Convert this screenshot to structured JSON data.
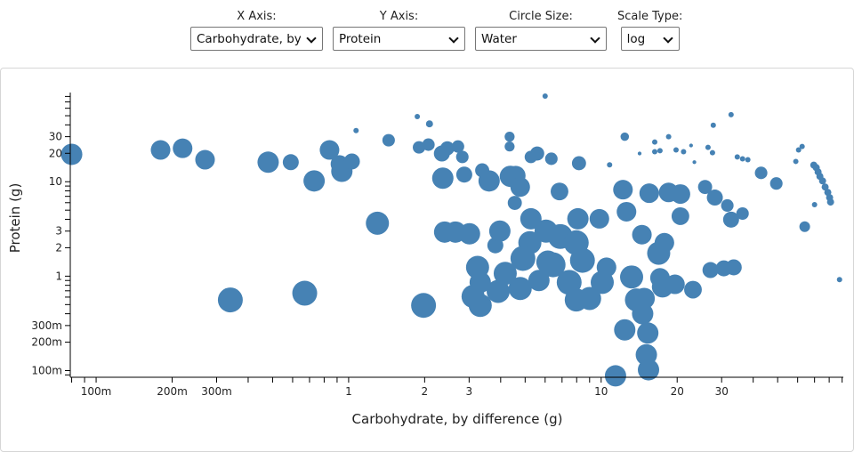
{
  "controls": {
    "x_axis": {
      "label": "X Axis:",
      "value": "Carbohydrate, by difference"
    },
    "y_axis": {
      "label": "Y Axis:",
      "value": "Protein"
    },
    "circle_size": {
      "label": "Circle Size:",
      "value": "Water"
    },
    "scale_type": {
      "label": "Scale Type:",
      "value": "log"
    }
  },
  "chart_data": {
    "type": "scatter",
    "xlabel": "Carbohydrate, by difference (g)",
    "ylabel": "Protein (g)",
    "size_field": "Water",
    "scale": "log",
    "color": "#4682b4",
    "xlim": [
      0.079,
      91
    ],
    "ylim": [
      0.085,
      88
    ],
    "x_ticks": [
      {
        "v": 0.1,
        "label": "100m"
      },
      {
        "v": 0.2,
        "label": "200m"
      },
      {
        "v": 0.3,
        "label": "300m"
      },
      {
        "v": 1,
        "label": "1"
      },
      {
        "v": 2,
        "label": "2"
      },
      {
        "v": 3,
        "label": "3"
      },
      {
        "v": 10,
        "label": "10"
      },
      {
        "v": 20,
        "label": "20"
      },
      {
        "v": 30,
        "label": "30"
      }
    ],
    "y_ticks": [
      {
        "v": 0.1,
        "label": "100m"
      },
      {
        "v": 0.2,
        "label": "200m"
      },
      {
        "v": 0.3,
        "label": "300m"
      },
      {
        "v": 1,
        "label": "1"
      },
      {
        "v": 2,
        "label": "2"
      },
      {
        "v": 3,
        "label": "3"
      },
      {
        "v": 10,
        "label": "10"
      },
      {
        "v": 20,
        "label": "20"
      },
      {
        "v": 30,
        "label": "30"
      }
    ],
    "points": [
      [
        0.08,
        19.5,
        64
      ],
      [
        0.18,
        21.7,
        54
      ],
      [
        0.22,
        22.6,
        54
      ],
      [
        0.27,
        17.1,
        54
      ],
      [
        0.48,
        16.1,
        64
      ],
      [
        0.59,
        16.1,
        36
      ],
      [
        0.73,
        10.2,
        64
      ],
      [
        0.84,
        21.7,
        54
      ],
      [
        0.92,
        15.4,
        44
      ],
      [
        0.94,
        12.9,
        64
      ],
      [
        1.03,
        16.4,
        36
      ],
      [
        1.07,
        34.8,
        4
      ],
      [
        1.3,
        3.64,
        75
      ],
      [
        0.34,
        0.56,
        87
      ],
      [
        0.67,
        0.66,
        87
      ],
      [
        1.44,
        27.5,
        22
      ],
      [
        1.87,
        49,
        4
      ],
      [
        2.09,
        41,
        7
      ],
      [
        1.9,
        23.1,
        22
      ],
      [
        2.07,
        24.7,
        22
      ],
      [
        1.98,
        0.49,
        87
      ],
      [
        2.34,
        19.9,
        36
      ],
      [
        2.46,
        22.6,
        28
      ],
      [
        2.71,
        23.6,
        22
      ],
      [
        2.82,
        18.3,
        22
      ],
      [
        2.36,
        10.9,
        64
      ],
      [
        2.87,
        11.9,
        36
      ],
      [
        2.4,
        2.93,
        64
      ],
      [
        2.65,
        2.93,
        64
      ],
      [
        3.01,
        2.81,
        64
      ],
      [
        3.81,
        2.12,
        36
      ],
      [
        3.38,
        13.2,
        28
      ],
      [
        3.6,
        10.2,
        64
      ],
      [
        4.34,
        30.0,
        14
      ],
      [
        4.34,
        23.6,
        14
      ],
      [
        4.37,
        11.4,
        64
      ],
      [
        4.59,
        11.6,
        54
      ],
      [
        4.78,
        8.79,
        54
      ],
      [
        4.55,
        5.97,
        28
      ],
      [
        5.27,
        18.3,
        22
      ],
      [
        5.58,
        19.9,
        28
      ],
      [
        6.0,
        80.7,
        4
      ],
      [
        6.35,
        17.5,
        22
      ],
      [
        6.84,
        7.89,
        44
      ],
      [
        8.17,
        15.7,
        28
      ],
      [
        10.8,
        15.1,
        4
      ],
      [
        12.4,
        30.0,
        10
      ],
      [
        12.2,
        8.24,
        54
      ],
      [
        14.2,
        19.9,
        2
      ],
      [
        16.3,
        26.3,
        4
      ],
      [
        16.3,
        20.8,
        4
      ],
      [
        17.1,
        21.3,
        4
      ],
      [
        18.5,
        30.0,
        4
      ],
      [
        19.8,
        21.7,
        4
      ],
      [
        21.2,
        20.8,
        4
      ],
      [
        22.7,
        24.2,
        2
      ],
      [
        23.4,
        16.1,
        2
      ],
      [
        26.5,
        23.1,
        4
      ],
      [
        27.6,
        20.3,
        4
      ],
      [
        27.8,
        39.6,
        4
      ],
      [
        32.7,
        51.3,
        4
      ],
      [
        34.6,
        18.3,
        4
      ],
      [
        36.3,
        17.5,
        4
      ],
      [
        38.1,
        17.1,
        4
      ],
      [
        43.0,
        12.4,
        22
      ],
      [
        49.4,
        9.58,
        22
      ],
      [
        59.0,
        16.4,
        4
      ],
      [
        60.5,
        21.7,
        4
      ],
      [
        62.5,
        23.6,
        4
      ],
      [
        69.5,
        15.0,
        7
      ],
      [
        71.1,
        14.1,
        7
      ],
      [
        72.3,
        12.7,
        7
      ],
      [
        73.5,
        11.4,
        7
      ],
      [
        75.3,
        10.2,
        7
      ],
      [
        77.1,
        8.79,
        7
      ],
      [
        79.0,
        7.72,
        7
      ],
      [
        80.3,
        6.79,
        7
      ],
      [
        81.0,
        6.09,
        7
      ],
      [
        70.0,
        5.72,
        4
      ],
      [
        64.0,
        3.34,
        16
      ],
      [
        87.9,
        0.92,
        4
      ],
      [
        3.97,
        3.0,
        64
      ],
      [
        5.27,
        4.05,
        64
      ],
      [
        5.22,
        2.26,
        75
      ],
      [
        4.9,
        1.54,
        87
      ],
      [
        3.24,
        1.24,
        75
      ],
      [
        3.32,
        0.86,
        64
      ],
      [
        3.11,
        0.61,
        75
      ],
      [
        3.32,
        0.49,
        75
      ],
      [
        3.91,
        0.69,
        75
      ],
      [
        4.17,
        1.07,
        75
      ],
      [
        4.78,
        0.74,
        75
      ],
      [
        5.67,
        0.9,
        64
      ],
      [
        6.45,
        1.32,
        87
      ],
      [
        6.89,
        2.63,
        87
      ],
      [
        8.09,
        4.05,
        64
      ],
      [
        7.97,
        2.26,
        87
      ],
      [
        8.43,
        1.47,
        87
      ],
      [
        7.47,
        0.86,
        87
      ],
      [
        7.97,
        0.56,
        75
      ],
      [
        9.0,
        0.58,
        75
      ],
      [
        9.84,
        4.05,
        54
      ],
      [
        10.1,
        0.86,
        75
      ],
      [
        10.5,
        1.24,
        54
      ],
      [
        6.05,
        3.0,
        75
      ],
      [
        6.15,
        1.41,
        75
      ],
      [
        12.6,
        4.81,
        54
      ],
      [
        14.5,
        2.75,
        54
      ],
      [
        17.8,
        2.26,
        54
      ],
      [
        16.9,
        1.75,
        75
      ],
      [
        20.6,
        4.32,
        44
      ],
      [
        13.2,
        0.98,
        75
      ],
      [
        14.8,
        0.58,
        64
      ],
      [
        13.8,
        0.56,
        75
      ],
      [
        14.6,
        0.4,
        64
      ],
      [
        12.4,
        0.27,
        64
      ],
      [
        15.3,
        0.25,
        64
      ],
      [
        15.1,
        0.147,
        64
      ],
      [
        15.4,
        0.102,
        64
      ],
      [
        11.4,
        0.088,
        64
      ],
      [
        17.5,
        0.77,
        64
      ],
      [
        19.6,
        0.82,
        54
      ],
      [
        23.1,
        0.72,
        44
      ],
      [
        17.1,
        0.96,
        54
      ],
      [
        27.1,
        1.16,
        36
      ],
      [
        30.6,
        1.21,
        36
      ],
      [
        33.5,
        1.24,
        36
      ],
      [
        15.5,
        7.56,
        54
      ],
      [
        18.5,
        7.7,
        54
      ],
      [
        20.6,
        7.4,
        54
      ],
      [
        28.2,
        6.8,
        36
      ],
      [
        31.6,
        5.6,
        22
      ],
      [
        32.7,
        3.97,
        36
      ],
      [
        36.3,
        4.6,
        22
      ],
      [
        25.8,
        8.8,
        28
      ]
    ]
  }
}
